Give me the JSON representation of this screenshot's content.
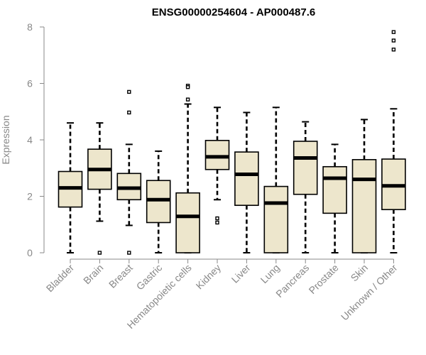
{
  "chart_data": {
    "type": "boxplot",
    "title": "ENSG00000254604 - AP000487.6",
    "ylabel": "Expression",
    "xlabel": "",
    "ylim": [
      0,
      8
    ],
    "yticks": [
      0,
      2,
      4,
      6,
      8
    ],
    "grid": false,
    "box_color": "#ede6cc",
    "line_color": "#000000",
    "axis_color": "#888888",
    "categories": [
      "Bladder",
      "Brain",
      "Breast",
      "Gastric",
      "Hematopoietic cells",
      "Kidney",
      "Liver",
      "Lung",
      "Pancreas",
      "Prostate",
      "Skin",
      "Unknown / Other"
    ],
    "boxes": [
      {
        "whislo": 0,
        "q1": 1.62,
        "med": 2.3,
        "q3": 2.88,
        "whishi": 4.6,
        "fliers": []
      },
      {
        "whislo": 1.12,
        "q1": 2.25,
        "med": 2.95,
        "q3": 3.67,
        "whishi": 4.6,
        "fliers": [
          0
        ]
      },
      {
        "whislo": 0.97,
        "q1": 1.88,
        "med": 2.29,
        "q3": 2.81,
        "whishi": 3.84,
        "fliers": [
          5.7,
          4.97,
          0
        ]
      },
      {
        "whislo": 0,
        "q1": 1.07,
        "med": 1.88,
        "q3": 2.56,
        "whishi": 3.6,
        "fliers": []
      },
      {
        "whislo": 0,
        "q1": 0,
        "med": 1.29,
        "q3": 2.12,
        "whishi": 5.27,
        "fliers": [
          5.92,
          5.87,
          5.43
        ]
      },
      {
        "whislo": 1.88,
        "q1": 2.95,
        "med": 3.4,
        "q3": 3.98,
        "whishi": 5.15,
        "fliers": [
          1.22,
          1.07
        ]
      },
      {
        "whislo": 0,
        "q1": 1.68,
        "med": 2.78,
        "q3": 3.57,
        "whishi": 4.97,
        "fliers": []
      },
      {
        "whislo": 0,
        "q1": 0,
        "med": 1.76,
        "q3": 2.35,
        "whishi": 5.15,
        "fliers": []
      },
      {
        "whislo": 0,
        "q1": 2.07,
        "med": 3.36,
        "q3": 3.95,
        "whishi": 4.64,
        "fliers": []
      },
      {
        "whislo": 0,
        "q1": 1.4,
        "med": 2.64,
        "q3": 3.05,
        "whishi": 3.84,
        "fliers": []
      },
      {
        "whislo": 0,
        "q1": 0,
        "med": 2.6,
        "q3": 3.3,
        "whishi": 4.72,
        "fliers": []
      },
      {
        "whislo": 0,
        "q1": 1.53,
        "med": 2.37,
        "q3": 3.32,
        "whishi": 5.1,
        "fliers": [
          7.82,
          7.52,
          7.2
        ]
      }
    ]
  }
}
